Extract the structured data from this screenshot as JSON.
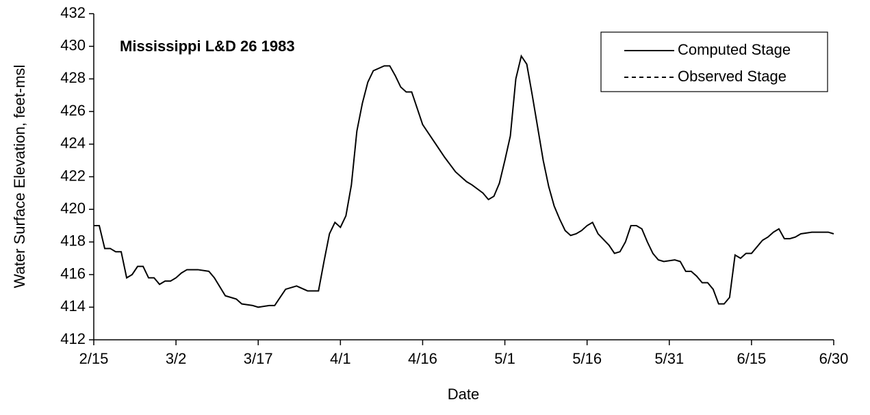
{
  "chart_data": {
    "type": "line",
    "title": "Mississippi L&D 26 1983",
    "x_label": "Date",
    "y_label": "Water Surface Elevation, feet-msl",
    "x": [
      "2/15",
      "2/16",
      "2/17",
      "2/18",
      "2/19",
      "2/20",
      "2/21",
      "2/22",
      "2/23",
      "2/24",
      "2/25",
      "2/26",
      "2/27",
      "2/28",
      "3/1",
      "3/2",
      "3/3",
      "3/4",
      "3/6",
      "3/8",
      "3/9",
      "3/11",
      "3/12",
      "3/13",
      "3/14",
      "3/16",
      "3/17",
      "3/19",
      "3/20",
      "3/21",
      "3/22",
      "3/23",
      "3/24",
      "3/26",
      "3/27",
      "3/28",
      "3/29",
      "3/30",
      "3/31",
      "4/1",
      "4/2",
      "4/3",
      "4/4",
      "4/5",
      "4/6",
      "4/7",
      "4/9",
      "4/10",
      "4/11",
      "4/12",
      "4/13",
      "4/14",
      "4/15",
      "4/16",
      "4/18",
      "4/20",
      "4/22",
      "4/24",
      "4/25",
      "4/27",
      "4/28",
      "4/29",
      "4/30",
      "5/1",
      "5/2",
      "5/3",
      "5/4",
      "5/5",
      "5/6",
      "5/7",
      "5/8",
      "5/9",
      "5/10",
      "5/11",
      "5/12",
      "5/13",
      "5/14",
      "5/15",
      "5/16",
      "5/17",
      "5/18",
      "5/20",
      "5/21",
      "5/22",
      "5/23",
      "5/24",
      "5/25",
      "5/26",
      "5/27",
      "5/28",
      "5/29",
      "5/30",
      "6/1",
      "6/2",
      "6/3",
      "6/4",
      "6/5",
      "6/6",
      "6/7",
      "6/8",
      "6/9",
      "6/10",
      "6/11",
      "6/12",
      "6/13",
      "6/14",
      "6/15",
      "6/16",
      "6/17",
      "6/18",
      "6/19",
      "6/20",
      "6/21",
      "6/22",
      "6/23",
      "6/24",
      "6/26",
      "6/28",
      "6/29",
      "6/30"
    ],
    "series": [
      {
        "name": "Computed Stage",
        "color": "#000000",
        "dash": "solid",
        "values": [
          419.0,
          419.0,
          417.6,
          417.6,
          417.4,
          417.4,
          415.8,
          416.0,
          416.5,
          416.5,
          415.8,
          415.8,
          415.4,
          415.6,
          415.6,
          415.8,
          416.1,
          416.3,
          416.3,
          416.2,
          415.8,
          414.7,
          414.6,
          414.5,
          414.2,
          414.1,
          414.0,
          414.1,
          414.1,
          414.6,
          415.1,
          415.2,
          415.3,
          415.0,
          415.0,
          415.0,
          416.8,
          418.5,
          419.2,
          418.9,
          419.6,
          421.5,
          424.8,
          426.5,
          427.8,
          428.5,
          428.8,
          428.8,
          428.2,
          427.5,
          427.2,
          427.2,
          426.2,
          425.2,
          424.2,
          423.2,
          422.3,
          421.7,
          421.5,
          421.0,
          420.6,
          420.8,
          421.6,
          423.0,
          424.5,
          428.0,
          429.4,
          428.9,
          427.0,
          425.0,
          423.0,
          421.4,
          420.2,
          419.4,
          418.7,
          418.4,
          418.5,
          418.7,
          419.0,
          419.2,
          418.5,
          417.8,
          417.3,
          417.4,
          418.0,
          419.0,
          419.0,
          418.8,
          418.0,
          417.3,
          416.9,
          416.8,
          416.9,
          416.8,
          416.2,
          416.2,
          415.9,
          415.5,
          415.5,
          415.1,
          414.2,
          414.2,
          414.6,
          417.2,
          417.0,
          417.3,
          417.3,
          417.7,
          418.1,
          418.3,
          418.6,
          418.8,
          418.2,
          418.2,
          418.3,
          418.5,
          418.6,
          418.6,
          418.6,
          418.5
        ]
      },
      {
        "name": "Observed Stage",
        "color": "#000000",
        "dash": "dashed",
        "values": [
          null,
          null,
          null,
          null,
          null,
          null,
          null,
          null,
          null,
          null,
          null,
          null,
          null,
          null,
          null,
          null,
          null,
          null,
          null,
          null,
          null,
          null,
          null,
          null,
          null,
          null,
          null,
          null,
          null,
          null,
          null,
          null,
          null,
          null,
          null,
          null,
          null,
          null,
          null,
          null,
          null,
          null,
          null,
          null,
          null,
          null,
          null,
          null,
          null,
          null,
          null,
          null,
          null,
          null,
          null,
          null,
          null,
          null,
          null,
          null,
          null,
          null,
          null,
          null,
          null,
          null,
          null,
          null,
          null,
          null,
          null,
          null,
          null,
          null,
          null,
          null,
          null,
          null,
          null,
          null,
          null,
          null,
          null,
          null,
          null,
          null,
          null,
          null,
          null,
          null,
          null,
          null,
          null,
          null,
          null,
          null,
          null,
          null,
          null,
          null,
          null,
          null,
          null,
          null,
          null,
          null,
          null,
          null,
          null,
          null,
          null,
          null,
          null,
          null,
          null,
          null,
          null,
          null,
          null,
          null
        ]
      }
    ],
    "xlim": [
      "2/15",
      "6/30"
    ],
    "xticks": [
      "2/15",
      "3/2",
      "3/17",
      "4/1",
      "4/16",
      "5/1",
      "5/16",
      "5/31",
      "6/15",
      "6/30"
    ],
    "ylim": [
      412,
      432
    ],
    "yticks": [
      412,
      414,
      416,
      418,
      420,
      422,
      424,
      426,
      428,
      430,
      432
    ],
    "grid": false,
    "legend": "upper right"
  }
}
